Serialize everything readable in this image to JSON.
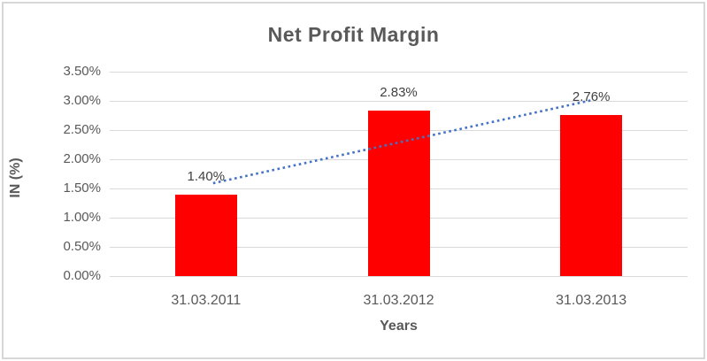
{
  "chart": {
    "title": "Net Profit Margin",
    "y_axis_title": "IN (%)",
    "x_axis_title": "Years",
    "colors": {
      "bar": "#ff0000",
      "trendline": "#4472c4",
      "gridline": "#d9d9d9",
      "text": "#595959",
      "data_label_text": "#404040",
      "frame_border": "#d7d7d7"
    }
  },
  "chart_data": {
    "type": "bar",
    "title": "Net Profit Margin",
    "xlabel": "Years",
    "ylabel": "IN (%)",
    "categories": [
      "31.03.2011",
      "31.03.2012",
      "31.03.2013"
    ],
    "values": [
      1.4,
      2.83,
      2.76
    ],
    "data_labels": [
      "1.40%",
      "2.83%",
      "2.76%"
    ],
    "y_ticks": [
      "3.50%",
      "3.00%",
      "2.50%",
      "2.00%",
      "1.50%",
      "1.00%",
      "0.50%",
      "0.00%"
    ],
    "ylim": [
      0,
      3.5
    ],
    "y_tick_step": 0.5,
    "grid": true,
    "legend": "none",
    "bar_color": "#ff0000",
    "trendline": {
      "type": "linear",
      "style": "dotted",
      "color": "#4472c4"
    }
  }
}
